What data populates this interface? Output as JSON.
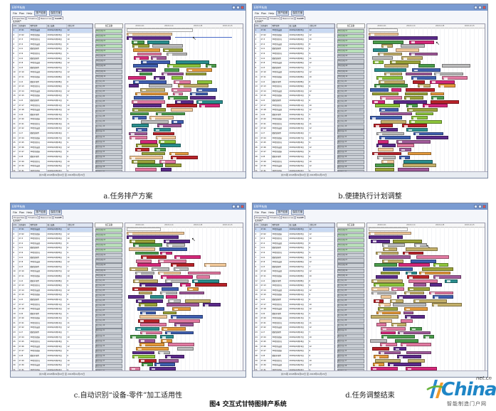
{
  "panels": [
    {
      "id": "a",
      "caption": "a.任务排产方案",
      "window_title": "ERPP系统",
      "menus": [
        "File",
        "Plan",
        "Help"
      ],
      "menu_buttons": [
        "排产检测",
        "保存方案"
      ],
      "tabs": [
        "Properties",
        "Timeline",
        "Resources",
        "Gantt"
      ],
      "subbar": "任务排产",
      "status": "共72项  2018年09月02日 至 2018年10月15日",
      "label_header": "加工设备",
      "chart_header": [
        "2018-9-01",
        "2018-9-14",
        "2018-9-28",
        "2018-10-15"
      ]
    },
    {
      "id": "b",
      "caption": "b.便捷执行计划调整",
      "window_title": "ERPP系统",
      "menus": [
        "File",
        "Plan",
        "Help"
      ],
      "menu_buttons": [
        "排产检测",
        "保存方案"
      ],
      "tabs": [
        "Properties",
        "Timeline",
        "Resources",
        "Gantt"
      ],
      "subbar": "任务排产",
      "status": "共72项  2018年09月02日 至 2018年10月15日",
      "label_header": "加工设备",
      "chart_header": [
        "2018-9-01",
        "2018-9-14",
        "2018-9-28",
        "2018-10-15"
      ]
    },
    {
      "id": "c",
      "caption": "c.自动识别“设备-零件”加工适用性",
      "window_title": "ERPP系统",
      "menus": [
        "File",
        "Plan",
        "Help"
      ],
      "menu_buttons": [
        "排产检测",
        "保存方案"
      ],
      "tabs": [
        "Properties",
        "Timeline",
        "Resources",
        "Gantt"
      ],
      "subbar": "任务排产",
      "status": "共72项  2018年09月02日 至 2018年10月15日",
      "label_header": "加工设备",
      "chart_header": [
        "2018-9-01",
        "2018-9-14",
        "2018-9-28",
        "2018-10-15"
      ]
    },
    {
      "id": "d",
      "caption": "d.任务调整结束",
      "window_title": "ERPP系统",
      "menus": [
        "File",
        "Plan",
        "Help"
      ],
      "menu_buttons": [
        "排产检测",
        "保存方案"
      ],
      "tabs": [
        "Properties",
        "Timeline",
        "Resources",
        "Gantt"
      ],
      "subbar": "任务排产",
      "status": "共72项  2018年09月02日 至 2018年10月15日",
      "label_header": "加工设备",
      "chart_header": [
        "2018-9-01",
        "2018-9-14",
        "2018-9-28",
        "2018-10-15"
      ]
    }
  ],
  "table": {
    "headers": [
      "序号",
      "任务编号",
      "零件名称",
      "加工设备",
      "计划工时"
    ],
    "rows": [
      [
        "1",
        "27-01",
        "3D打印支架",
        "2018年09月03日",
        "12"
      ],
      [
        "2",
        "27-02",
        "3D打印底座",
        "2018年09月03日",
        "12"
      ],
      [
        "3",
        "27-3",
        "3D打印外壳",
        "2018年09月04日",
        "10"
      ],
      [
        "4",
        "27-4",
        "3D打印支架",
        "2018年09月05日",
        "8"
      ],
      [
        "5",
        "1-11",
        "精密铣削件",
        "2018年09月05日",
        "6"
      ],
      [
        "6",
        "17-6",
        "3D打印外壳",
        "2018年09月05日",
        "9"
      ],
      [
        "7",
        "1-12",
        "精密铣削件",
        "2018年09月06日",
        "11"
      ],
      [
        "8",
        "27-8",
        "3D打印支架",
        "2018年09月06日",
        "12"
      ],
      [
        "9",
        "1-13",
        "精密铣削件",
        "2018年09月07日",
        "7"
      ],
      [
        "10",
        "27-10",
        "3D打印支架",
        "2018年09月07日",
        "12"
      ],
      [
        "11",
        "27-11",
        "3D打印底座",
        "2018年09月08日",
        "10"
      ],
      [
        "12",
        "1-14",
        "精密车削件",
        "2018年09月08日",
        "6"
      ],
      [
        "13",
        "27-13",
        "3D打印外壳",
        "2018年09月09日",
        "9"
      ],
      [
        "14",
        "27-14",
        "3D打印支架",
        "2018年09月10日",
        "12"
      ],
      [
        "15",
        "27-15",
        "3D打印底座",
        "2018年09月10日",
        "8"
      ],
      [
        "16",
        "1-15",
        "精密铣削件",
        "2018年09月11日",
        "6"
      ],
      [
        "17",
        "27-17",
        "3D打印外壳",
        "2018年09月11日",
        "10"
      ],
      [
        "18",
        "27-18",
        "3D打印支架",
        "2018年09月12日",
        "12"
      ],
      [
        "19",
        "1-16",
        "精密车削件",
        "2018年09月13日",
        "5"
      ],
      [
        "20",
        "27-20",
        "3D打印底座",
        "2018年09月13日",
        "9"
      ],
      [
        "21",
        "27-21",
        "3D打印外壳",
        "2018年09月14日",
        "11"
      ],
      [
        "22",
        "27-22",
        "3D打印支架",
        "2018年09月15日",
        "12"
      ],
      [
        "23",
        "1-17",
        "精密铣削件",
        "2018年09月16日",
        "7"
      ],
      [
        "24",
        "27-24",
        "3D打印底座",
        "2018年09月17日",
        "10"
      ],
      [
        "25",
        "27-25",
        "3D打印外壳",
        "2018年09月18日",
        "9"
      ],
      [
        "26",
        "27-26",
        "3D打印支架",
        "2018年09月19日",
        "12"
      ],
      [
        "27",
        "27-27",
        "3D打印底座",
        "2018年09月20日",
        "8"
      ],
      [
        "28",
        "1-18",
        "精密车削件",
        "2018年09月21日",
        "6"
      ],
      [
        "29",
        "27-29",
        "3D打印外壳",
        "2018年09月22日",
        "10"
      ],
      [
        "30",
        "27-30",
        "3D打印支架",
        "2018年09月23日",
        "12"
      ],
      [
        "31",
        "27-31",
        "3D打印底座",
        "2018年09月24日",
        "9"
      ],
      [
        "32",
        "27-32",
        "3D打印外壳",
        "2018年09月25日",
        "11"
      ],
      [
        "33",
        "27-33",
        "3D打印支架",
        "2018年09月26日",
        "12"
      ],
      [
        "34",
        "27-34",
        "3D打印底座",
        "2018年09月27日",
        "8"
      ],
      [
        "35",
        "27-35",
        "3D打印外壳",
        "2018年09月28日",
        "10"
      ],
      [
        "36",
        "27-36",
        "3D打印支架",
        "2018年09月29日",
        "12"
      ]
    ]
  },
  "equipment_labels": [
    "3D打印机 01",
    "3D打印机 02",
    "3D打印机 03",
    "3D打印机 04",
    "3D打印机 05",
    "3D打印机 06",
    "3D打印机 07",
    "3D打印机 08",
    "3D打印机 09",
    "3D打印机 10",
    "加工中心 01",
    "加工中心 02",
    "加工中心 03",
    "加工中心 04",
    "加工中心 05",
    "加工中心 06",
    "加工中心 07",
    "加工中心 08",
    "加工中心 09",
    "加工中心 10",
    "数控车床 01",
    "数控车床 02",
    "数控车床 03",
    "数控车床 04",
    "数控车床 05",
    "数控车床 06",
    "数控车床 07",
    "数控车床 08",
    "数控铣床 01",
    "数控铣床 02",
    "数控铣床 03",
    "数控铣床 04",
    "数控铣床 05",
    "数控铣床 06",
    "数控铣床 07",
    "数控铣床 08"
  ],
  "colors": {
    "olive": "#9aa33a",
    "purple": "#5b2a8a",
    "pink": "#d5287a",
    "teal": "#2a8e8e",
    "lime": "#8cc43b",
    "gray": "#bcbcbc",
    "khaki": "#c4b06a",
    "red": "#b8232a",
    "orange": "#e59a3c",
    "blue": "#3f5fb0",
    "mauve": "#a05a9a",
    "peach": "#f2c99a",
    "rose": "#e27aa2",
    "green": "#4b9c4c"
  },
  "figure_caption": "图4  交互式甘特图排产系统",
  "logo": {
    "name": "China",
    "tld": "net.cn",
    "sub": "智能制造门户网"
  }
}
